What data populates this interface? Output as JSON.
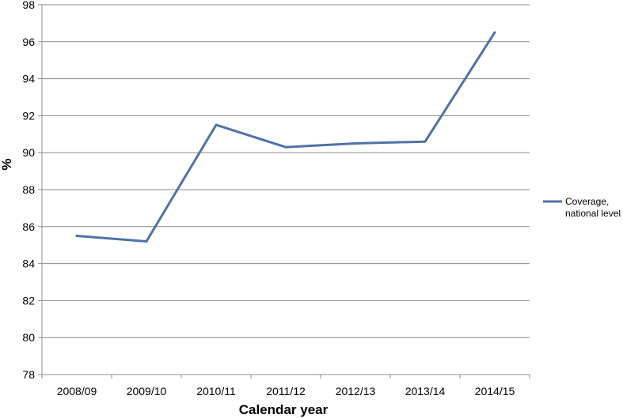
{
  "chart_data": {
    "type": "line",
    "title": "",
    "xlabel": "Calendar year",
    "ylabel": "%",
    "ylim": [
      78,
      98
    ],
    "ytick_step": 2,
    "grid": true,
    "legend_position": "right",
    "categories": [
      "2008/09",
      "2009/10",
      "2010/11",
      "2011/12",
      "2012/13",
      "2013/14",
      "2014/15"
    ],
    "series": [
      {
        "name_lines": [
          "Coverage,",
          "national level"
        ],
        "color": "#4f72a8",
        "values": [
          85.5,
          85.2,
          91.5,
          90.3,
          90.5,
          90.6,
          96.5
        ]
      }
    ]
  }
}
